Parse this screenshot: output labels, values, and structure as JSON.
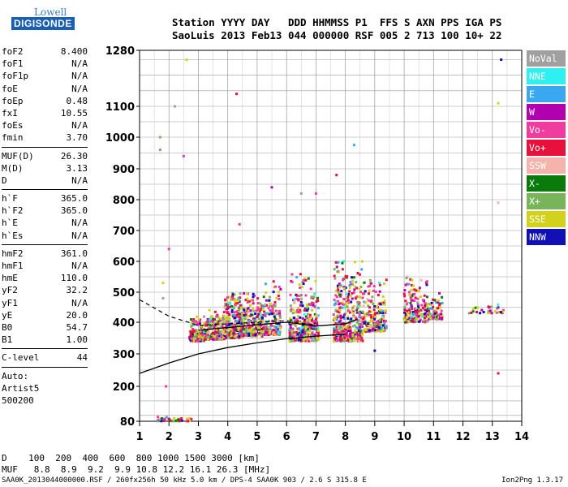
{
  "logo": {
    "top": "Lowell",
    "bottom": "DIGISONDE"
  },
  "header": {
    "line1": "Station YYYY DAY   DDD HHMMSS P1  FFS S AXN PPS IGA PS",
    "line2": "SaoLuis 2013 Feb13 044 000000 RSF 005 2 713 100 10+ 22"
  },
  "params": [
    {
      "k": "foF2",
      "v": "8.400"
    },
    {
      "k": "foF1",
      "v": "N/A"
    },
    {
      "k": "foF1p",
      "v": "N/A"
    },
    {
      "k": "foE",
      "v": "N/A"
    },
    {
      "k": "foEp",
      "v": "0.48"
    },
    {
      "k": "fxI",
      "v": "10.55"
    },
    {
      "k": "foEs",
      "v": "N/A"
    },
    {
      "k": "fmin",
      "v": "3.70"
    },
    {
      "sep": true
    },
    {
      "k": "MUF(D)",
      "v": "26.30"
    },
    {
      "k": "M(D)",
      "v": "3.13"
    },
    {
      "k": "D",
      "v": "N/A"
    },
    {
      "sep": true
    },
    {
      "k": "h`F",
      "v": "365.0"
    },
    {
      "k": "h`F2",
      "v": "365.0"
    },
    {
      "k": "h`E",
      "v": "N/A"
    },
    {
      "k": "h`Es",
      "v": "N/A"
    },
    {
      "sep": true
    },
    {
      "k": "hmF2",
      "v": "361.0"
    },
    {
      "k": "hmF1",
      "v": "N/A"
    },
    {
      "k": "hmE",
      "v": "110.0"
    },
    {
      "k": "yF2",
      "v": "32.2"
    },
    {
      "k": "yF1",
      "v": "N/A"
    },
    {
      "k": "yE",
      "v": "20.0"
    },
    {
      "k": "B0",
      "v": "54.7"
    },
    {
      "k": "B1",
      "v": "1.00"
    },
    {
      "sep": true
    },
    {
      "k": "C-level",
      "v": "44"
    },
    {
      "sep": true
    }
  ],
  "auto": [
    "Auto:",
    "Artist5",
    "500200"
  ],
  "legend": [
    {
      "label": "NoVal",
      "color": "#a0a0a0"
    },
    {
      "label": "NNE",
      "color": "#2ef0f0"
    },
    {
      "label": "E",
      "color": "#3aa8f0"
    },
    {
      "label": "W",
      "color": "#b000b0"
    },
    {
      "label": "Vo-",
      "color": "#f03c9e"
    },
    {
      "label": "Vo+",
      "color": "#e8103c"
    },
    {
      "label": "SSW",
      "color": "#f4b4ac"
    },
    {
      "label": "X-",
      "color": "#0a7a0a"
    },
    {
      "label": "X+",
      "color": "#78b45a"
    },
    {
      "label": "SSE",
      "color": "#d2d21e"
    },
    {
      "label": "NNW",
      "color": "#1010b4"
    }
  ],
  "dtable": {
    "line1": "D    100  200  400  600  800 1000 1500 3000 [km]",
    "line2": "MUF   8.8  8.9  9.2  9.9 10.8 12.2 16.1 26.3 [MHz]"
  },
  "footer": "SAA0K_2013044000000.RSF / 260fx256h 50 kHz 5.0 km / DPS-4 SAA0K 903 / 2.6 S 315.8 E",
  "footer_right": "Ion2Png 1.3.17",
  "chart_data": {
    "type": "scatter",
    "title": "",
    "xlabel": "",
    "ylabel": "",
    "xlim": [
      1,
      14
    ],
    "ylim": [
      80,
      1280
    ],
    "yscale": "nonlinear",
    "xticks": [
      1,
      2,
      3,
      4,
      5,
      6,
      7,
      8,
      9,
      10,
      11,
      12,
      13,
      14
    ],
    "yticks": [
      80,
      200,
      300,
      400,
      500,
      600,
      700,
      800,
      900,
      1000,
      1100,
      1280
    ],
    "grid": true,
    "clusters": [
      {
        "x": [
          2.7,
          3.2
        ],
        "y": [
          340,
          420
        ],
        "n": 160
      },
      {
        "x": [
          3.2,
          3.9
        ],
        "y": [
          345,
          440
        ],
        "n": 220
      },
      {
        "x": [
          3.9,
          4.5
        ],
        "y": [
          350,
          500
        ],
        "n": 300
      },
      {
        "x": [
          4.5,
          5.2
        ],
        "y": [
          355,
          500
        ],
        "n": 240
      },
      {
        "x": [
          5.2,
          5.8
        ],
        "y": [
          360,
          540
        ],
        "n": 160
      },
      {
        "x": [
          6.1,
          7.1
        ],
        "y": [
          340,
          560
        ],
        "n": 340
      },
      {
        "x": [
          7.6,
          8.6
        ],
        "y": [
          340,
          600
        ],
        "n": 400
      },
      {
        "x": [
          8.6,
          9.4
        ],
        "y": [
          370,
          540
        ],
        "n": 200
      },
      {
        "x": [
          10.0,
          10.8
        ],
        "y": [
          400,
          560
        ],
        "n": 180
      },
      {
        "x": [
          10.8,
          11.3
        ],
        "y": [
          410,
          500
        ],
        "n": 90
      },
      {
        "x": [
          12.2,
          13.4
        ],
        "y": [
          430,
          470
        ],
        "n": 30
      },
      {
        "x": [
          1.6,
          2.8
        ],
        "y": [
          80,
          95
        ],
        "n": 40
      }
    ],
    "line_lower": {
      "x": [
        1,
        2,
        3,
        4,
        5,
        6,
        7,
        8
      ],
      "y": [
        240,
        272,
        300,
        320,
        335,
        348,
        356,
        362
      ]
    },
    "line_dashed": {
      "x": [
        1,
        2,
        3,
        4,
        5,
        6,
        7
      ],
      "y": [
        475,
        420,
        390,
        395,
        400,
        405,
        390
      ]
    },
    "line_profile": {
      "x": [
        3,
        4,
        5,
        6,
        7,
        8,
        8.4
      ],
      "y": [
        375,
        383,
        392,
        400,
        388,
        395,
        410
      ]
    }
  }
}
